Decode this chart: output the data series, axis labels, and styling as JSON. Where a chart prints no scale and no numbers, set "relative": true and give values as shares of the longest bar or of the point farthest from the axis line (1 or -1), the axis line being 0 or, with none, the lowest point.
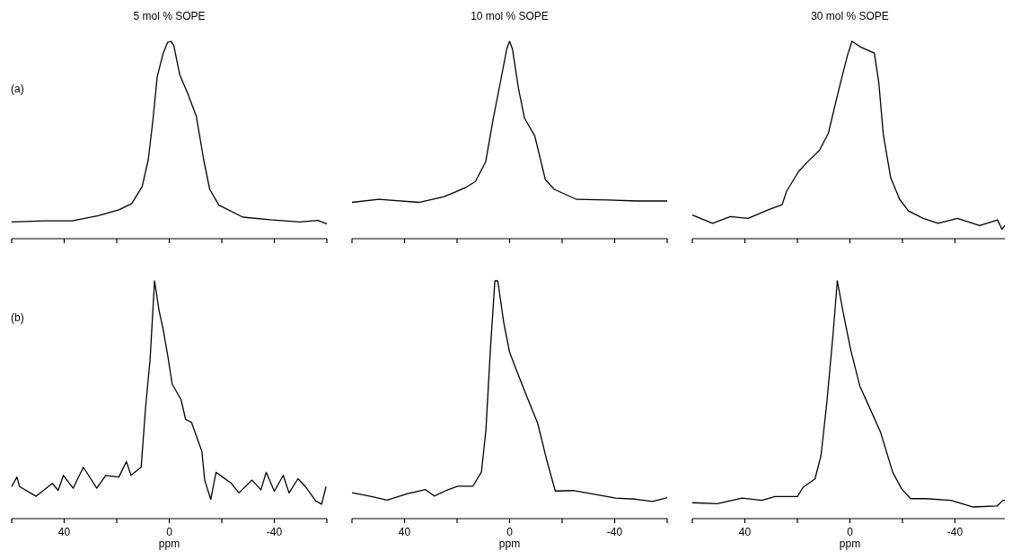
{
  "chart_data": [
    {
      "type": "line",
      "title": "5 mol % SOPE",
      "annotations": [
        "(a)"
      ],
      "relative": true,
      "xlim": [
        60,
        -60
      ],
      "xticks": [
        {
          "value": 60,
          "label": null
        },
        {
          "value": 40,
          "label": null
        },
        {
          "value": 20,
          "label": null
        },
        {
          "value": 0,
          "label": null
        },
        {
          "value": -20,
          "label": null
        },
        {
          "value": -40,
          "label": null
        },
        {
          "value": -60,
          "label": null
        }
      ],
      "tick_labels": false,
      "grid": false,
      "series": [
        {
          "color": "#000000",
          "x": [
            60,
            47.4,
            37,
            27,
            19,
            14.3,
            10.3,
            8,
            6.3,
            4.6,
            2.3,
            0.6,
            -0.6,
            -1.7,
            -4,
            -6.9,
            -10.3,
            -13.1,
            -15.4,
            -18.9,
            -28,
            -38.3,
            -49.7,
            -56.6,
            -60
          ],
          "values": [
            0.085,
            0.09,
            0.09,
            0.116,
            0.147,
            0.178,
            0.264,
            0.4,
            0.59,
            0.82,
            0.94,
            0.995,
            1,
            0.98,
            0.83,
            0.74,
            0.62,
            0.4,
            0.25,
            0.17,
            0.109,
            0.096,
            0.085,
            0.093,
            0.074
          ]
        }
      ]
    },
    {
      "type": "line",
      "title": "10 mol % SOPE",
      "relative": true,
      "xlim": [
        60,
        -60
      ],
      "xticks": [
        {
          "value": 60,
          "label": null
        },
        {
          "value": 40,
          "label": null
        },
        {
          "value": 20,
          "label": null
        },
        {
          "value": 0,
          "label": null
        },
        {
          "value": -20,
          "label": null
        },
        {
          "value": -40,
          "label": null
        },
        {
          "value": -60,
          "label": null
        }
      ],
      "tick_labels": false,
      "grid": false,
      "series": [
        {
          "color": "#000000",
          "x": [
            60,
            49.8,
            34.5,
            24.9,
            17,
            13,
            9.1,
            6.2,
            3.4,
            1.1,
            0,
            -1.1,
            -3.4,
            -5.7,
            -9.6,
            -13.6,
            -17,
            -25.5,
            -37.4,
            -48.7,
            -60
          ],
          "values": [
            0.184,
            0.199,
            0.184,
            0.213,
            0.257,
            0.29,
            0.39,
            0.61,
            0.8,
            0.96,
            1,
            0.96,
            0.76,
            0.61,
            0.52,
            0.3,
            0.25,
            0.199,
            0.196,
            0.191,
            0.191
          ]
        }
      ]
    },
    {
      "type": "line",
      "title": "30 mol % SOPE",
      "relative": true,
      "xlim": [
        60,
        -60
      ],
      "xticks": [
        {
          "value": 60,
          "label": null
        },
        {
          "value": 40,
          "label": null
        },
        {
          "value": 20,
          "label": null
        },
        {
          "value": 0,
          "label": null
        },
        {
          "value": -20,
          "label": null
        },
        {
          "value": -40,
          "label": null
        },
        {
          "value": -60,
          "label": null
        }
      ],
      "tick_labels": false,
      "grid": false,
      "series": [
        {
          "color": "#000000",
          "x": [
            60,
            52.3,
            45.5,
            38.8,
            30.9,
            25.8,
            24.1,
            19.5,
            16.2,
            11.6,
            8.2,
            5.4,
            3.2,
            0.9,
            -0.8,
            -4.2,
            -9.3,
            -11,
            -12.7,
            -15.5,
            -18.9,
            -22.3,
            -27.9,
            -33.6,
            -40.9,
            -49.4,
            -56.2,
            -57.9,
            -59.6
          ],
          "values": [
            0.12,
            0.078,
            0.112,
            0.103,
            0.147,
            0.172,
            0.241,
            0.341,
            0.388,
            0.448,
            0.534,
            0.69,
            0.81,
            0.93,
            1,
            0.97,
            0.94,
            0.79,
            0.53,
            0.31,
            0.2,
            0.14,
            0.103,
            0.078,
            0.103,
            0.066,
            0.095,
            0.048,
            0.078
          ]
        }
      ]
    },
    {
      "type": "line",
      "xlabel": "ppm",
      "annotations": [
        "(b)"
      ],
      "relative": true,
      "xlim": [
        60,
        -60
      ],
      "xticks": [
        {
          "value": 60,
          "label": null
        },
        {
          "value": 40,
          "label": "40"
        },
        {
          "value": 20,
          "label": null
        },
        {
          "value": 0,
          "label": "0"
        },
        {
          "value": -20,
          "label": null
        },
        {
          "value": -40,
          "label": "-40"
        },
        {
          "value": -60,
          "label": null
        }
      ],
      "tick_labels": "x",
      "grid": false,
      "series": [
        {
          "color": "#000000",
          "x": [
            60,
            58,
            57,
            50.7,
            44.5,
            42.3,
            40.3,
            36.6,
            32.7,
            27.6,
            24.2,
            19.2,
            16.3,
            14.6,
            10.7,
            9,
            7.3,
            5.6,
            3.9,
            2.3,
            0.6,
            -1.1,
            -4.5,
            -6.2,
            -8.5,
            -12.4,
            -13.5,
            -15.8,
            -17.8,
            -20.3,
            -23.7,
            -26.5,
            -31.5,
            -34.9,
            -36.9,
            -40,
            -43.4,
            -45.6,
            -49,
            -51.8,
            -55.8,
            -58,
            -59.7
          ],
          "values": [
            0.135,
            0.175,
            0.135,
            0.094,
            0.148,
            0.119,
            0.182,
            0.128,
            0.216,
            0.128,
            0.182,
            0.175,
            0.24,
            0.182,
            0.216,
            0.47,
            0.67,
            1,
            0.876,
            0.795,
            0.687,
            0.566,
            0.5,
            0.418,
            0.404,
            0.283,
            0.162,
            0.081,
            0.195,
            0.175,
            0.148,
            0.108,
            0.162,
            0.121,
            0.195,
            0.115,
            0.182,
            0.108,
            0.168,
            0.135,
            0.074,
            0.061,
            0.135
          ]
        }
      ]
    },
    {
      "type": "line",
      "xlabel": "ppm",
      "relative": true,
      "xlim": [
        60,
        -60
      ],
      "xticks": [
        {
          "value": 60,
          "label": null
        },
        {
          "value": 40,
          "label": "40"
        },
        {
          "value": 20,
          "label": null
        },
        {
          "value": 0,
          "label": "0"
        },
        {
          "value": -20,
          "label": null
        },
        {
          "value": -40,
          "label": "-40"
        },
        {
          "value": -60,
          "label": null
        }
      ],
      "tick_labels": "x",
      "grid": false,
      "series": [
        {
          "color": "#000000",
          "x": [
            60,
            53.4,
            46.6,
            38.8,
            32,
            28.7,
            24.2,
            19.7,
            14,
            10.7,
            9,
            7.3,
            5.6,
            4.5,
            2.2,
            0,
            -2.8,
            -6.2,
            -10.7,
            -14,
            -17.4,
            -24.2,
            -30.9,
            -40.4,
            -47.8,
            -54.5,
            -60
          ],
          "values": [
            0.109,
            0.095,
            0.078,
            0.105,
            0.122,
            0.095,
            0.118,
            0.136,
            0.136,
            0.197,
            0.374,
            0.714,
            1,
            1,
            0.823,
            0.7,
            0.619,
            0.524,
            0.401,
            0.252,
            0.116,
            0.118,
            0.105,
            0.086,
            0.082,
            0.072,
            0.088
          ]
        }
      ]
    },
    {
      "type": "line",
      "xlabel": "ppm",
      "relative": true,
      "xlim": [
        60,
        -60
      ],
      "xticks": [
        {
          "value": 60,
          "label": null
        },
        {
          "value": 40,
          "label": "40"
        },
        {
          "value": 20,
          "label": null
        },
        {
          "value": 0,
          "label": "0"
        },
        {
          "value": -20,
          "label": null
        },
        {
          "value": -40,
          "label": "-40"
        },
        {
          "value": -60,
          "label": null
        }
      ],
      "tick_labels": "x",
      "grid": false,
      "series": [
        {
          "color": "#000000",
          "x": [
            60,
            50.5,
            41,
            33.6,
            28.5,
            20,
            17.8,
            13.3,
            11,
            8.8,
            6.5,
            4.8,
            2.5,
            -0.3,
            -3.8,
            -7.2,
            -11.7,
            -16.3,
            -19.7,
            -23.1,
            -28.8,
            -38.4,
            -47,
            -56,
            -58.2,
            -60
          ],
          "values": [
            0.067,
            0.063,
            0.086,
            0.077,
            0.093,
            0.093,
            0.132,
            0.167,
            0.265,
            0.487,
            0.766,
            1,
            0.864,
            0.71,
            0.557,
            0.474,
            0.362,
            0.195,
            0.125,
            0.084,
            0.084,
            0.077,
            0.049,
            0.053,
            0.077,
            0.077
          ]
        }
      ]
    }
  ]
}
